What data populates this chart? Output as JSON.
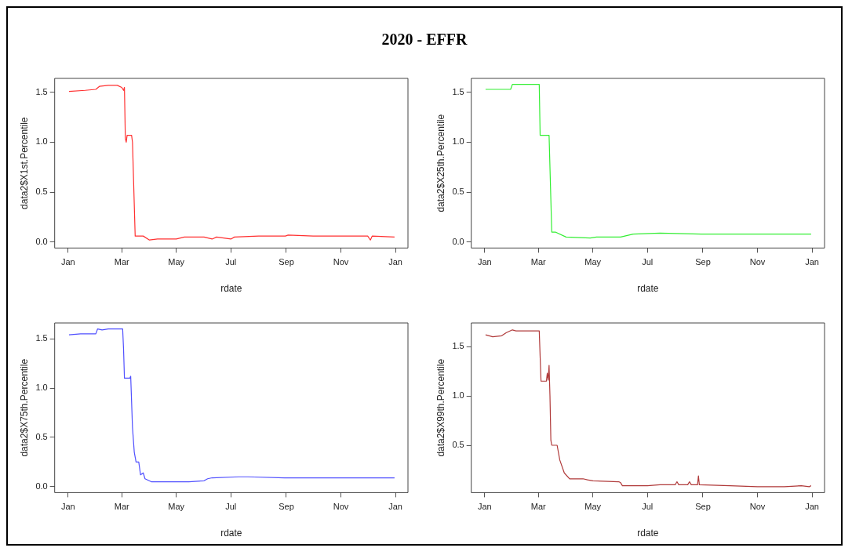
{
  "chart_data": [
    {
      "type": "line",
      "title": "2020 - EFFR",
      "xlabel": "rdate",
      "ylabel": "data2$X1st.Percentile",
      "x": [
        "2020-01-02",
        "2020-01-20",
        "2020-02-01",
        "2020-02-05",
        "2020-02-15",
        "2020-02-25",
        "2020-03-01",
        "2020-03-03",
        "2020-03-04",
        "2020-03-05",
        "2020-03-06",
        "2020-03-07",
        "2020-03-12",
        "2020-03-13",
        "2020-03-16",
        "2020-03-25",
        "2020-04-01",
        "2020-04-10",
        "2020-05-01",
        "2020-05-10",
        "2020-06-01",
        "2020-06-10",
        "2020-06-15",
        "2020-07-01",
        "2020-07-05",
        "2020-08-01",
        "2020-08-31",
        "2020-09-03",
        "2020-10-01",
        "2020-10-05",
        "2020-11-01",
        "2020-12-01",
        "2020-12-04",
        "2020-12-06",
        "2020-12-31"
      ],
      "series": [
        {
          "color": "#ff3030",
          "values": [
            1.51,
            1.52,
            1.53,
            1.56,
            1.57,
            1.57,
            1.55,
            1.52,
            1.55,
            1.04,
            1.0,
            1.07,
            1.07,
            1.0,
            0.06,
            0.06,
            0.02,
            0.03,
            0.03,
            0.05,
            0.05,
            0.03,
            0.05,
            0.03,
            0.05,
            0.06,
            0.06,
            0.07,
            0.06,
            0.06,
            0.06,
            0.06,
            0.02,
            0.06,
            0.05
          ]
        }
      ],
      "xlim": [
        "2019-12-17",
        "2021-01-15"
      ],
      "ylim": [
        -0.06,
        1.64
      ],
      "xticks": [
        {
          "value": "2020-01-01",
          "label": "Jan"
        },
        {
          "value": "2020-03-01",
          "label": "Mar"
        },
        {
          "value": "2020-05-01",
          "label": "May"
        },
        {
          "value": "2020-07-01",
          "label": "Jul"
        },
        {
          "value": "2020-09-01",
          "label": "Sep"
        },
        {
          "value": "2020-11-01",
          "label": "Nov"
        },
        {
          "value": "2021-01-01",
          "label": "Jan"
        }
      ],
      "yticks": [
        {
          "value": 0,
          "label": "0.0"
        },
        {
          "value": 0.5,
          "label": "0.5"
        },
        {
          "value": 1,
          "label": "1.0"
        },
        {
          "value": 1.5,
          "label": "1.5"
        }
      ]
    },
    {
      "type": "line",
      "xlabel": "rdate",
      "ylabel": "data2$X25th.Percentile",
      "x": [
        "2020-01-02",
        "2020-01-30",
        "2020-02-01",
        "2020-03-02",
        "2020-03-03",
        "2020-03-13",
        "2020-03-16",
        "2020-03-20",
        "2020-04-01",
        "2020-04-28",
        "2020-05-05",
        "2020-06-01",
        "2020-06-15",
        "2020-07-15",
        "2020-08-30",
        "2020-12-31"
      ],
      "series": [
        {
          "color": "#33ee33",
          "values": [
            1.53,
            1.53,
            1.58,
            1.58,
            1.07,
            1.07,
            0.1,
            0.1,
            0.05,
            0.04,
            0.05,
            0.05,
            0.08,
            0.09,
            0.08,
            0.08
          ]
        }
      ],
      "xlim": [
        "2019-12-17",
        "2021-01-15"
      ],
      "ylim": [
        -0.06,
        1.64
      ],
      "xticks": [
        {
          "value": "2020-01-01",
          "label": "Jan"
        },
        {
          "value": "2020-03-01",
          "label": "Mar"
        },
        {
          "value": "2020-05-01",
          "label": "May"
        },
        {
          "value": "2020-07-01",
          "label": "Jul"
        },
        {
          "value": "2020-09-01",
          "label": "Sep"
        },
        {
          "value": "2020-11-01",
          "label": "Nov"
        },
        {
          "value": "2021-01-01",
          "label": "Jan"
        }
      ],
      "yticks": [
        {
          "value": 0,
          "label": "0.0"
        },
        {
          "value": 0.5,
          "label": "0.5"
        },
        {
          "value": 1,
          "label": "1.0"
        },
        {
          "value": 1.5,
          "label": "1.5"
        }
      ]
    },
    {
      "type": "line",
      "xlabel": "rdate",
      "ylabel": "data2$X75th.Percentile",
      "x": [
        "2020-01-02",
        "2020-01-15",
        "2020-02-01",
        "2020-02-03",
        "2020-02-08",
        "2020-02-15",
        "2020-03-02",
        "2020-03-03",
        "2020-03-04",
        "2020-03-10",
        "2020-03-11",
        "2020-03-13",
        "2020-03-15",
        "2020-03-17",
        "2020-03-20",
        "2020-03-22",
        "2020-03-25",
        "2020-03-27",
        "2020-04-03",
        "2020-05-15",
        "2020-06-01",
        "2020-06-05",
        "2020-06-10",
        "2020-07-10",
        "2020-07-20",
        "2020-08-30",
        "2020-12-31"
      ],
      "series": [
        {
          "color": "#5050ff",
          "values": [
            1.54,
            1.55,
            1.55,
            1.6,
            1.59,
            1.6,
            1.6,
            1.4,
            1.1,
            1.1,
            1.12,
            0.6,
            0.35,
            0.25,
            0.25,
            0.12,
            0.14,
            0.08,
            0.05,
            0.05,
            0.06,
            0.08,
            0.09,
            0.1,
            0.1,
            0.09,
            0.09
          ]
        }
      ],
      "xlim": [
        "2019-12-17",
        "2021-01-15"
      ],
      "ylim": [
        -0.06,
        1.66
      ],
      "xticks": [
        {
          "value": "2020-01-01",
          "label": "Jan"
        },
        {
          "value": "2020-03-01",
          "label": "Mar"
        },
        {
          "value": "2020-05-01",
          "label": "May"
        },
        {
          "value": "2020-07-01",
          "label": "Jul"
        },
        {
          "value": "2020-09-01",
          "label": "Sep"
        },
        {
          "value": "2020-11-01",
          "label": "Nov"
        },
        {
          "value": "2021-01-01",
          "label": "Jan"
        }
      ],
      "yticks": [
        {
          "value": 0,
          "label": "0.0"
        },
        {
          "value": 0.5,
          "label": "0.5"
        },
        {
          "value": 1,
          "label": "1.0"
        },
        {
          "value": 1.5,
          "label": "1.5"
        }
      ]
    },
    {
      "type": "line",
      "xlabel": "rdate",
      "ylabel": "data2$X99th.Percentile",
      "x": [
        "2020-01-02",
        "2020-01-10",
        "2020-01-20",
        "2020-01-25",
        "2020-02-01",
        "2020-02-05",
        "2020-03-02",
        "2020-03-03",
        "2020-03-04",
        "2020-03-10",
        "2020-03-11",
        "2020-03-12",
        "2020-03-13",
        "2020-03-14",
        "2020-03-15",
        "2020-03-16",
        "2020-03-22",
        "2020-03-25",
        "2020-03-30",
        "2020-04-05",
        "2020-04-20",
        "2020-04-25",
        "2020-05-01",
        "2020-05-30",
        "2020-06-01",
        "2020-06-03",
        "2020-07-01",
        "2020-07-15",
        "2020-08-01",
        "2020-08-03",
        "2020-08-05",
        "2020-08-15",
        "2020-08-17",
        "2020-08-19",
        "2020-08-26",
        "2020-08-27",
        "2020-08-28",
        "2020-10-01",
        "2020-11-01",
        "2020-12-01",
        "2020-12-20",
        "2020-12-29",
        "2020-12-31"
      ],
      "series": [
        {
          "color": "#b03a3a",
          "values": [
            1.62,
            1.6,
            1.61,
            1.64,
            1.67,
            1.66,
            1.66,
            1.4,
            1.15,
            1.15,
            1.23,
            1.16,
            1.31,
            1.0,
            0.55,
            0.5,
            0.5,
            0.35,
            0.22,
            0.16,
            0.16,
            0.15,
            0.14,
            0.13,
            0.12,
            0.09,
            0.09,
            0.1,
            0.1,
            0.13,
            0.1,
            0.1,
            0.13,
            0.1,
            0.1,
            0.19,
            0.1,
            0.09,
            0.08,
            0.08,
            0.09,
            0.08,
            0.09
          ]
        }
      ],
      "xlim": [
        "2019-12-17",
        "2021-01-15"
      ],
      "ylim": [
        0.02,
        1.74
      ],
      "xticks": [
        {
          "value": "2020-01-01",
          "label": "Jan"
        },
        {
          "value": "2020-03-01",
          "label": "Mar"
        },
        {
          "value": "2020-05-01",
          "label": "May"
        },
        {
          "value": "2020-07-01",
          "label": "Jul"
        },
        {
          "value": "2020-09-01",
          "label": "Sep"
        },
        {
          "value": "2020-11-01",
          "label": "Nov"
        },
        {
          "value": "2021-01-01",
          "label": "Jan"
        }
      ],
      "yticks": [
        {
          "value": 0.5,
          "label": "0.5"
        },
        {
          "value": 1,
          "label": "1.0"
        },
        {
          "value": 1.5,
          "label": "1.5"
        }
      ]
    }
  ]
}
